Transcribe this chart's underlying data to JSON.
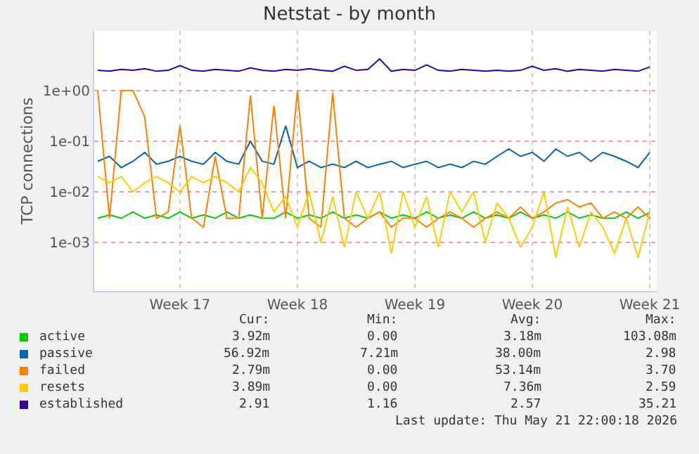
{
  "chart_data": {
    "type": "line",
    "title": "Netstat - by month",
    "ylabel": "TCP connections",
    "log": "y",
    "grid": true,
    "legend": "bottom",
    "marker": "none",
    "line_style": "solid",
    "categories": [
      null,
      null,
      null,
      null,
      null,
      null,
      null,
      "Week 17",
      null,
      null,
      null,
      null,
      null,
      null,
      null,
      null,
      null,
      "Week 18",
      null,
      null,
      null,
      null,
      null,
      null,
      null,
      null,
      null,
      "Week 19",
      null,
      null,
      null,
      null,
      null,
      null,
      null,
      null,
      null,
      "Week 20",
      null,
      null,
      null,
      null,
      null,
      null,
      null,
      null,
      null,
      "Week 21"
    ],
    "ylim": [
      0.00011,
      15
    ],
    "yticks": [
      {
        "value": 0.001,
        "label": "1e-03"
      },
      {
        "value": 0.01,
        "label": "1e-02"
      },
      {
        "value": 0.1,
        "label": "1e-01"
      },
      {
        "value": 1,
        "label": "1e+00"
      }
    ],
    "series": [
      {
        "name": "active",
        "color": "#00cc00",
        "values": [
          0.003,
          0.0035,
          0.003,
          0.004,
          0.003,
          0.0035,
          0.003,
          0.004,
          0.003,
          0.0035,
          0.003,
          0.004,
          0.003,
          0.0035,
          0.003,
          0.003,
          0.004,
          0.003,
          0.0035,
          0.003,
          0.004,
          0.003,
          0.0035,
          0.003,
          0.004,
          0.003,
          0.0035,
          0.003,
          0.004,
          0.003,
          0.0035,
          0.003,
          0.004,
          0.003,
          0.0035,
          0.003,
          0.004,
          0.003,
          0.0035,
          0.003,
          0.004,
          0.003,
          0.0035,
          0.003,
          0.003,
          0.004,
          0.003,
          0.0039
        ]
      },
      {
        "name": "passive",
        "color": "#0066b3",
        "values": [
          0.04,
          0.05,
          0.03,
          0.04,
          0.06,
          0.035,
          0.04,
          0.05,
          0.04,
          0.035,
          0.06,
          0.04,
          0.035,
          0.1,
          0.04,
          0.035,
          0.2,
          0.03,
          0.04,
          0.03,
          0.035,
          0.03,
          0.04,
          0.03,
          0.035,
          0.04,
          0.03,
          0.035,
          0.04,
          0.03,
          0.035,
          0.03,
          0.04,
          0.035,
          0.05,
          0.07,
          0.05,
          0.06,
          0.04,
          0.07,
          0.05,
          0.06,
          0.04,
          0.06,
          0.05,
          0.04,
          0.03,
          0.06
        ]
      },
      {
        "name": "failed",
        "color": "#ff8000",
        "values": [
          1.0,
          0.003,
          1.0,
          1.0,
          0.3,
          0.003,
          0.004,
          0.2,
          0.003,
          0.002,
          0.05,
          0.003,
          0.003,
          0.8,
          0.003,
          0.5,
          0.003,
          1.0,
          0.003,
          0.002,
          0.9,
          0.003,
          0.002,
          0.003,
          0.004,
          0.002,
          0.003,
          0.003,
          0.002,
          0.003,
          0.004,
          0.003,
          0.002,
          0.003,
          0.004,
          0.003,
          0.005,
          0.003,
          0.004,
          0.006,
          0.007,
          0.005,
          0.006,
          0.003,
          0.004,
          0.003,
          0.005,
          0.003
        ]
      },
      {
        "name": "resets",
        "color": "#ffcc00",
        "values": [
          0.02,
          0.015,
          0.02,
          0.01,
          0.015,
          0.02,
          0.015,
          0.01,
          0.02,
          0.015,
          0.02,
          0.015,
          0.01,
          0.03,
          0.015,
          0.004,
          0.008,
          0.002,
          0.01,
          0.001,
          0.008,
          0.0008,
          0.01,
          0.003,
          0.01,
          0.0006,
          0.01,
          0.002,
          0.008,
          0.0008,
          0.01,
          0.004,
          0.01,
          0.001,
          0.006,
          0.003,
          0.0008,
          0.002,
          0.01,
          0.0005,
          0.005,
          0.0008,
          0.004,
          0.002,
          0.0006,
          0.003,
          0.0005,
          0.004
        ]
      },
      {
        "name": "established",
        "color": "#330099",
        "values": [
          2.5,
          2.4,
          2.6,
          2.5,
          2.7,
          2.4,
          2.5,
          3.1,
          2.5,
          2.4,
          2.6,
          2.5,
          2.4,
          2.8,
          2.5,
          2.4,
          2.6,
          2.5,
          2.7,
          2.5,
          2.4,
          3.0,
          2.5,
          2.6,
          4.2,
          2.4,
          2.6,
          2.5,
          3.2,
          2.5,
          2.4,
          2.6,
          2.5,
          2.4,
          2.5,
          2.4,
          2.5,
          3.0,
          2.5,
          2.7,
          2.4,
          2.6,
          2.5,
          2.4,
          2.6,
          2.5,
          2.4,
          2.9
        ]
      }
    ],
    "annotations": [
      "Cur:",
      "Min:",
      "Avg:",
      "Max:",
      "3.92m",
      "0.00",
      "3.18m",
      "103.08m",
      "56.92m",
      "7.21m",
      "38.00m",
      "2.98",
      "2.79m",
      "0.00",
      "53.14m",
      "3.70",
      "3.89m",
      "0.00",
      "7.36m",
      "2.59",
      "2.91",
      "1.16",
      "2.57",
      "35.21",
      "Last update: Thu May 21 22:00:18 2026"
    ]
  }
}
